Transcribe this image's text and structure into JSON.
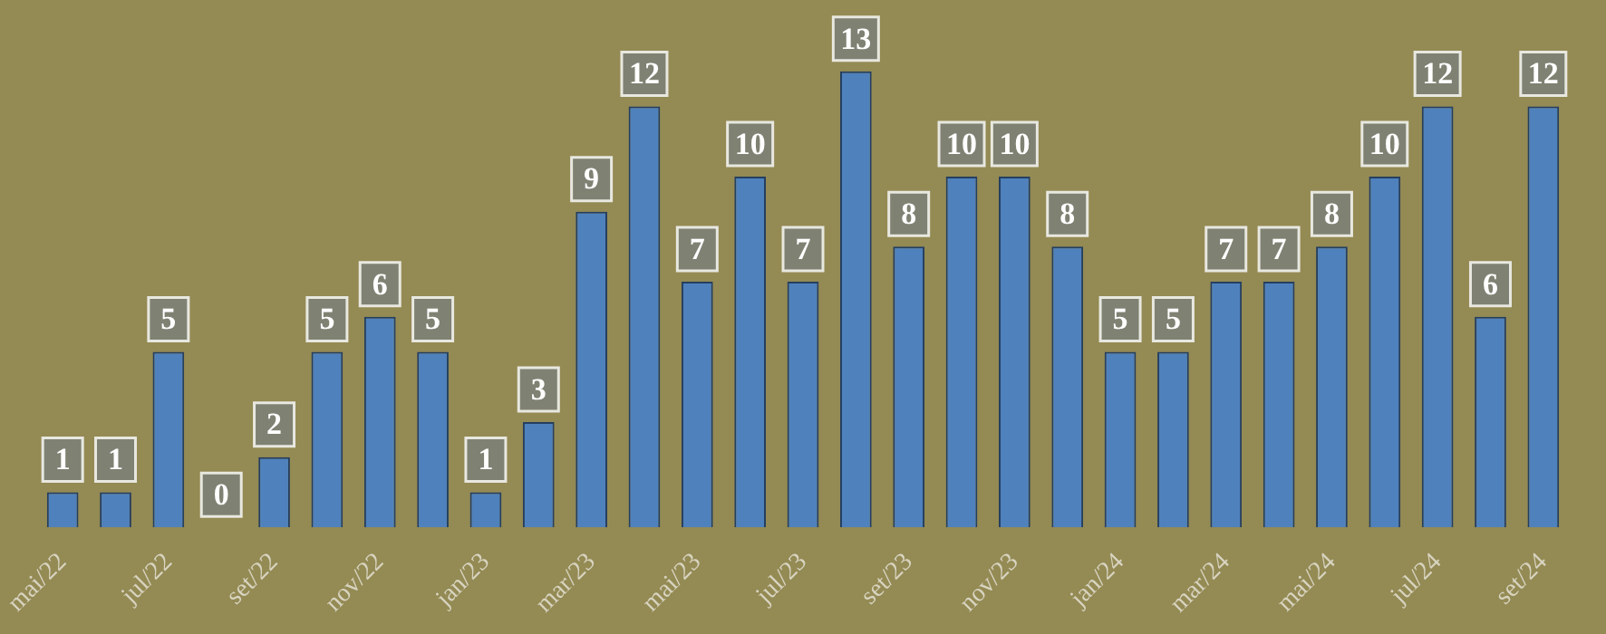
{
  "chart_data": {
    "type": "bar",
    "categories": [
      "mai/22",
      null,
      "jul/22",
      null,
      "set/22",
      null,
      "nov/22",
      null,
      "jan/23",
      null,
      "mar/23",
      null,
      "mai/23",
      null,
      "jul/23",
      null,
      "set/23",
      null,
      "nov/23",
      null,
      "jan/24",
      null,
      "mar/24",
      null,
      "mai/24",
      null,
      "jul/24",
      null,
      "set/24"
    ],
    "values": [
      1,
      1,
      5,
      0,
      2,
      5,
      6,
      5,
      1,
      3,
      9,
      12,
      7,
      10,
      7,
      13,
      8,
      10,
      10,
      8,
      5,
      5,
      7,
      7,
      8,
      10,
      12,
      6,
      12
    ],
    "color": "#4f81bd",
    "data_labels": true,
    "grid": false,
    "legend": false
  }
}
